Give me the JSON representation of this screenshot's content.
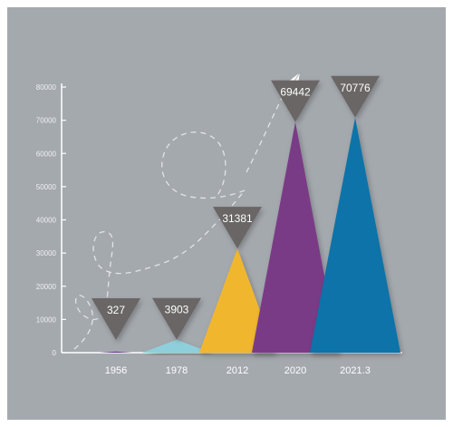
{
  "chart_data": {
    "type": "bar",
    "categories": [
      "1956",
      "1978",
      "2012",
      "2020",
      "2021.3"
    ],
    "values": [
      327,
      3903,
      31381,
      69442,
      70776
    ],
    "value_labels": [
      "327",
      "3903",
      "31381",
      "69442",
      "70776"
    ],
    "yticks": [
      "0",
      "10000",
      "20000",
      "30000",
      "40000",
      "50000",
      "60000",
      "70000",
      "80000"
    ],
    "ylim": [
      0,
      80000
    ],
    "grid": false,
    "title": "",
    "xlabel": "",
    "ylabel": "",
    "colors": {
      "background": "#a4a9ae",
      "axis": "#ffffff",
      "bars": [
        "#6a3e86",
        "#8fcfdc",
        "#f0b72e",
        "#7a3a86",
        "#0a73a8"
      ],
      "badge": "#6b6666",
      "decoration": "#e8eaec"
    },
    "decoration_icon": "paper-plane-icon"
  }
}
